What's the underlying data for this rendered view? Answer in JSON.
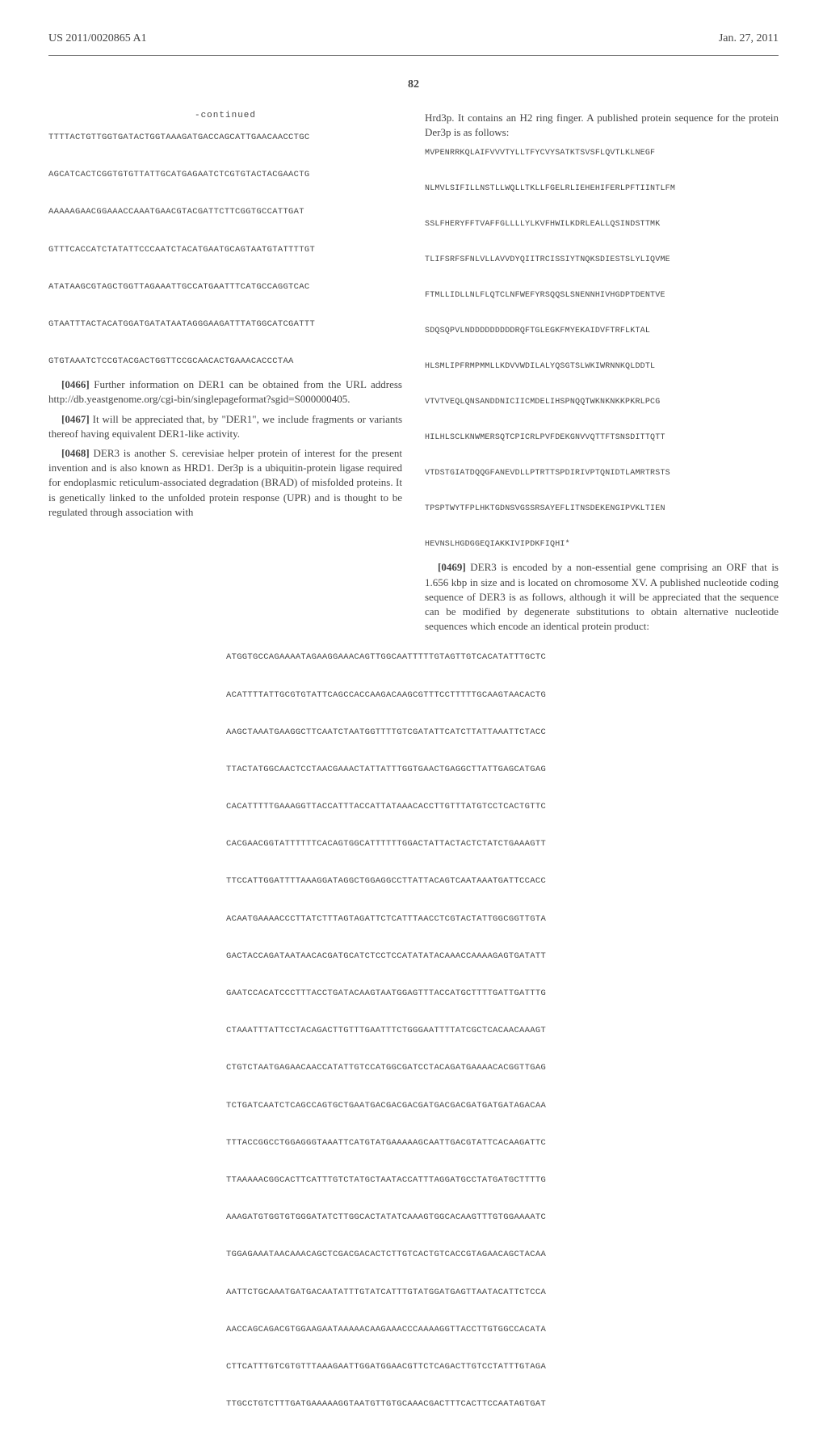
{
  "header": {
    "left": "US 2011/0020865 A1",
    "right": "Jan. 27, 2011"
  },
  "page_number": "82",
  "left_col": {
    "continued_label": "-continued",
    "seq1": "TTTTACTGTTGGTGATACTGGTAAAGATGACCAGCATTGAACAACCTGC\n\nAGCATCACTCGGTGTGTTATTGCATGAGAATCTCGTGTACTACGAACTG\n\nAAAAAGAACGGAAACCAAATGAACGTACGATTCTTCGGTGCCATTGAT\n\nGTTTCACCATCTATATTCCCAATCTACATGAATGCAGTAATGTATTTTGT\n\nATATAAGCGTAGCTGGTTAGAAATTGCCATGAATTTCATGCCAGGTCAC\n\nGTAATTTACTACATGGATGATATAATAGGGAAGATTTATGGCATCGATTT\n\nGTGTAAATCTCCGTACGACTGGTTCCGCAACACTGAAACACCCTAA",
    "p0466": "Further information on DER1 can be obtained from the URL address http://db.yeastgenome.org/cgi-bin/singlepageformat?sgid=S000000405.",
    "p0467": "It will be appreciated that, by \"DER1\", we include fragments or variants thereof having equivalent DER1-like activity.",
    "p0468": "DER3 is another S. cerevisiae helper protein of interest for the present invention and is also known as HRD1. Der3p is a ubiquitin-protein ligase required for endoplasmic reticulum-associated degradation (BRAD) of misfolded proteins. It is genetically linked to the unfolded protein response (UPR) and is thought to be regulated through association with"
  },
  "right_col": {
    "intro": "Hrd3p. It contains an H2 ring finger. A published protein sequence for the protein Der3p is as follows:",
    "protein_seq": "MVPENRRKQLAIFVVVTYLLTFYCVYSATKTSVSFLQVTLKLNEGF\n\nNLMVLSIFILLNSTLLWQLLTKLLFGELRLIEHEHIFERLPFTIINTLFM\n\nSSLFHERYFFTVAFFGLLLLYLKVFHWILKDRLEALLQSINDSTTMK\n\nTLIFSRFSFNLVLLAVVDYQIITRCISSIYTNQKSDIESTSLYLIQVME\n\nFTMLLIDLLNLFLQTCLNFWEFYRSQQSLSNENNHIVHGDPTDENTVE\n\nSDQSQPVLNDDDDDDDDDRQFTGLEGKFMYEKAIDVFTRFLKTAL\n\nHLSMLIPFRMPMMLLKDVVWDILALYQSGTSLWKIWRNNKQLDDTL\n\nVTVTVEQLQNSANDDNICIICMDELIHSPNQQTWKNKNKKPKRLPCG\n\nHILHLSCLKNWMERSQTCPICRLPVFDEKGNVVQTTFTSNSDITTQTT\n\nVTDSTGIATDQQGFANEVDLLPTRTTSPDIRIVPTQNIDTLAMRTRSTS\n\nTPSPTWYTFPLHKTGDNSVGSSRSAYEFLITNSDEKENGIPVKLTIEN\n\nHEVNSLHGDGGEQIAKKIVIPDKFIQHI*",
    "p0469": "DER3 is encoded by a non-essential gene comprising an ORF that is 1.656 kbp in size and is located on chromosome XV. A published nucleotide coding sequence of DER3 is as follows, although it will be appreciated that the sequence can be modified by degenerate substitutions to obtain alternative nucleotide sequences which encode an identical protein product:"
  },
  "bottom_seq": "ATGGTGCCAGAAAATAGAAGGAAACAGTTGGCAATTTTTGTAGTTGTCACATATTTGCTC\n\nACATTTTATTGCGTGTATTCAGCCACCAAGACAAGCGTTTCCTTTTTGCAAGTAACACTG\n\nAAGCTAAATGAAGGCTTCAATCTAATGGTTTTGTCGATATTCATCTTATTAAATTCTACC\n\nTTACTATGGCAACTCCTAACGAAACTATTATTTGGTGAACTGAGGCTTATTGAGCATGAG\n\nCACATTTTTGAAAGGTTACCATTTACCATTATAAACACCTTGTTTATGTCCTCACTGTTC\n\nCACGAACGGTATTTTTTCACAGTGGCATTTTTTGGACTATTACTACTCTATCTGAAAGTT\n\nTTCCATTGGATTTTAAAGGATAGGCTGGAGGCCTTATTACAGTCAATAAATGATTCCACC\n\nACAATGAAAACCCTTATCTTTAGTAGATTCTCATTTAACCTCGTACTATTGGCGGTTGTA\n\nGACTACCAGATAATAACACGATGCATCTCCTCCATATATACAAACCAAAAGAGTGATATT\n\nGAATCCACATCCCTTTACCTGATACAAGTAATGGAGTTTACCATGCTTTTGATTGATTTG\n\nCTAAATTTATTCCTACAGACTTGTTTGAATTTCTGGGAATTTTATCGCTCACAACAAAGT\n\nCTGTCTAATGAGAACAACCATATTGTCCATGGCGATCCTACAGATGAAAACACGGTTGAG\n\nTCTGATCAATCTCAGCCAGTGCTGAATGACGACGACGATGACGACGATGATGATAGACAA\n\nTTTACCGGCCTGGAGGGTAAATTCATGTATGAAAAAGCAATTGACGTATTCACAAGATTC\n\nTTAAAAACGGCACTTCATTTGTCTATGCTAATACCATTTAGGATGCCTATGATGCTTTTG\n\nAAAGATGTGGTGTGGGATATCTTGGCACTATATCAAAGTGGCACAAGTTTGTGGAAAATC\n\nTGGAGAAATAACAAACAGCTCGACGACACTCTTGTCACTGTCACCGTAGAACAGCTACAA\n\nAATTCTGCAAATGATGACAATATTTGTATCATTTGTATGGATGAGTTAATACATTCTCCA\n\nAACCAGCAGACGTGGAAGAATAAAAACAAGAAACCCAAAAGGTTACCTTGTGGCCACATA\n\nCTTCATTTGTCGTGTTTAAAGAATTGGATGGAACGTTCTCAGACTTGTCCTATTTGTAGA\n\nTTGCCTGTCTTTGATGAAAAAGGTAATGTTGTGCAAACGACTTTCACTTCCAATAGTGAT"
}
